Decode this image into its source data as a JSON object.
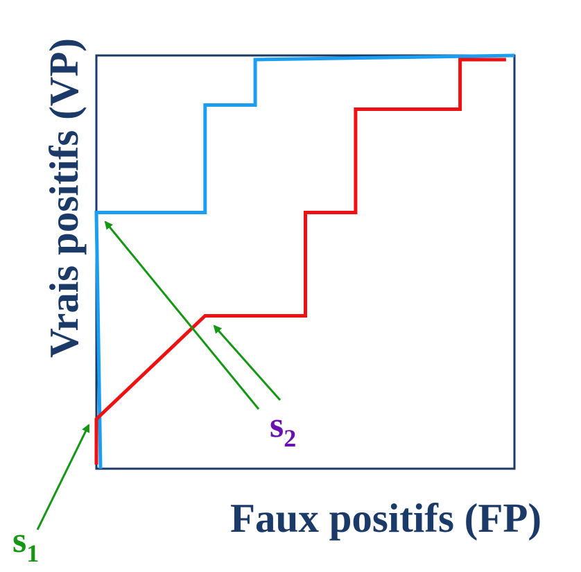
{
  "axes": {
    "x_label": "Faux positifs (FP)",
    "y_label": "Vrais positifs (VP)"
  },
  "thresholds": {
    "s1": {
      "letter": "s",
      "subscript": "1"
    },
    "s2": {
      "letter": "s",
      "subscript": "2"
    }
  },
  "chart_data": {
    "type": "line",
    "xlabel": "Faux positifs (FP)",
    "ylabel": "Vrais positifs (VP)",
    "xlim": [
      0,
      1
    ],
    "ylim": [
      0,
      1
    ],
    "series": [
      {
        "color": "#1c9ef0",
        "points": [
          [
            0.01,
            0.0
          ],
          [
            0.0,
            0.62
          ],
          [
            0.0,
            0.62
          ],
          [
            0.26,
            0.62
          ],
          [
            0.26,
            0.88
          ],
          [
            0.38,
            0.88
          ],
          [
            0.38,
            0.99
          ],
          [
            1.0,
            1.0
          ]
        ]
      },
      {
        "color": "#ee1111",
        "points": [
          [
            0.0,
            0.01
          ],
          [
            0.0,
            0.12
          ],
          [
            0.26,
            0.37
          ],
          [
            0.5,
            0.37
          ],
          [
            0.5,
            0.62
          ],
          [
            0.62,
            0.62
          ],
          [
            0.62,
            0.87
          ],
          [
            0.87,
            0.87
          ],
          [
            0.87,
            0.99
          ],
          [
            0.98,
            0.99
          ]
        ]
      }
    ]
  },
  "colors": {
    "frame": "#1b3a68",
    "axis_text": "#1b3a68",
    "blue_curve": "#1c9ef0",
    "red_curve": "#ee1111",
    "arrows": "#159615",
    "s1_label": "#159615",
    "s2_label": "#6a12b0"
  }
}
